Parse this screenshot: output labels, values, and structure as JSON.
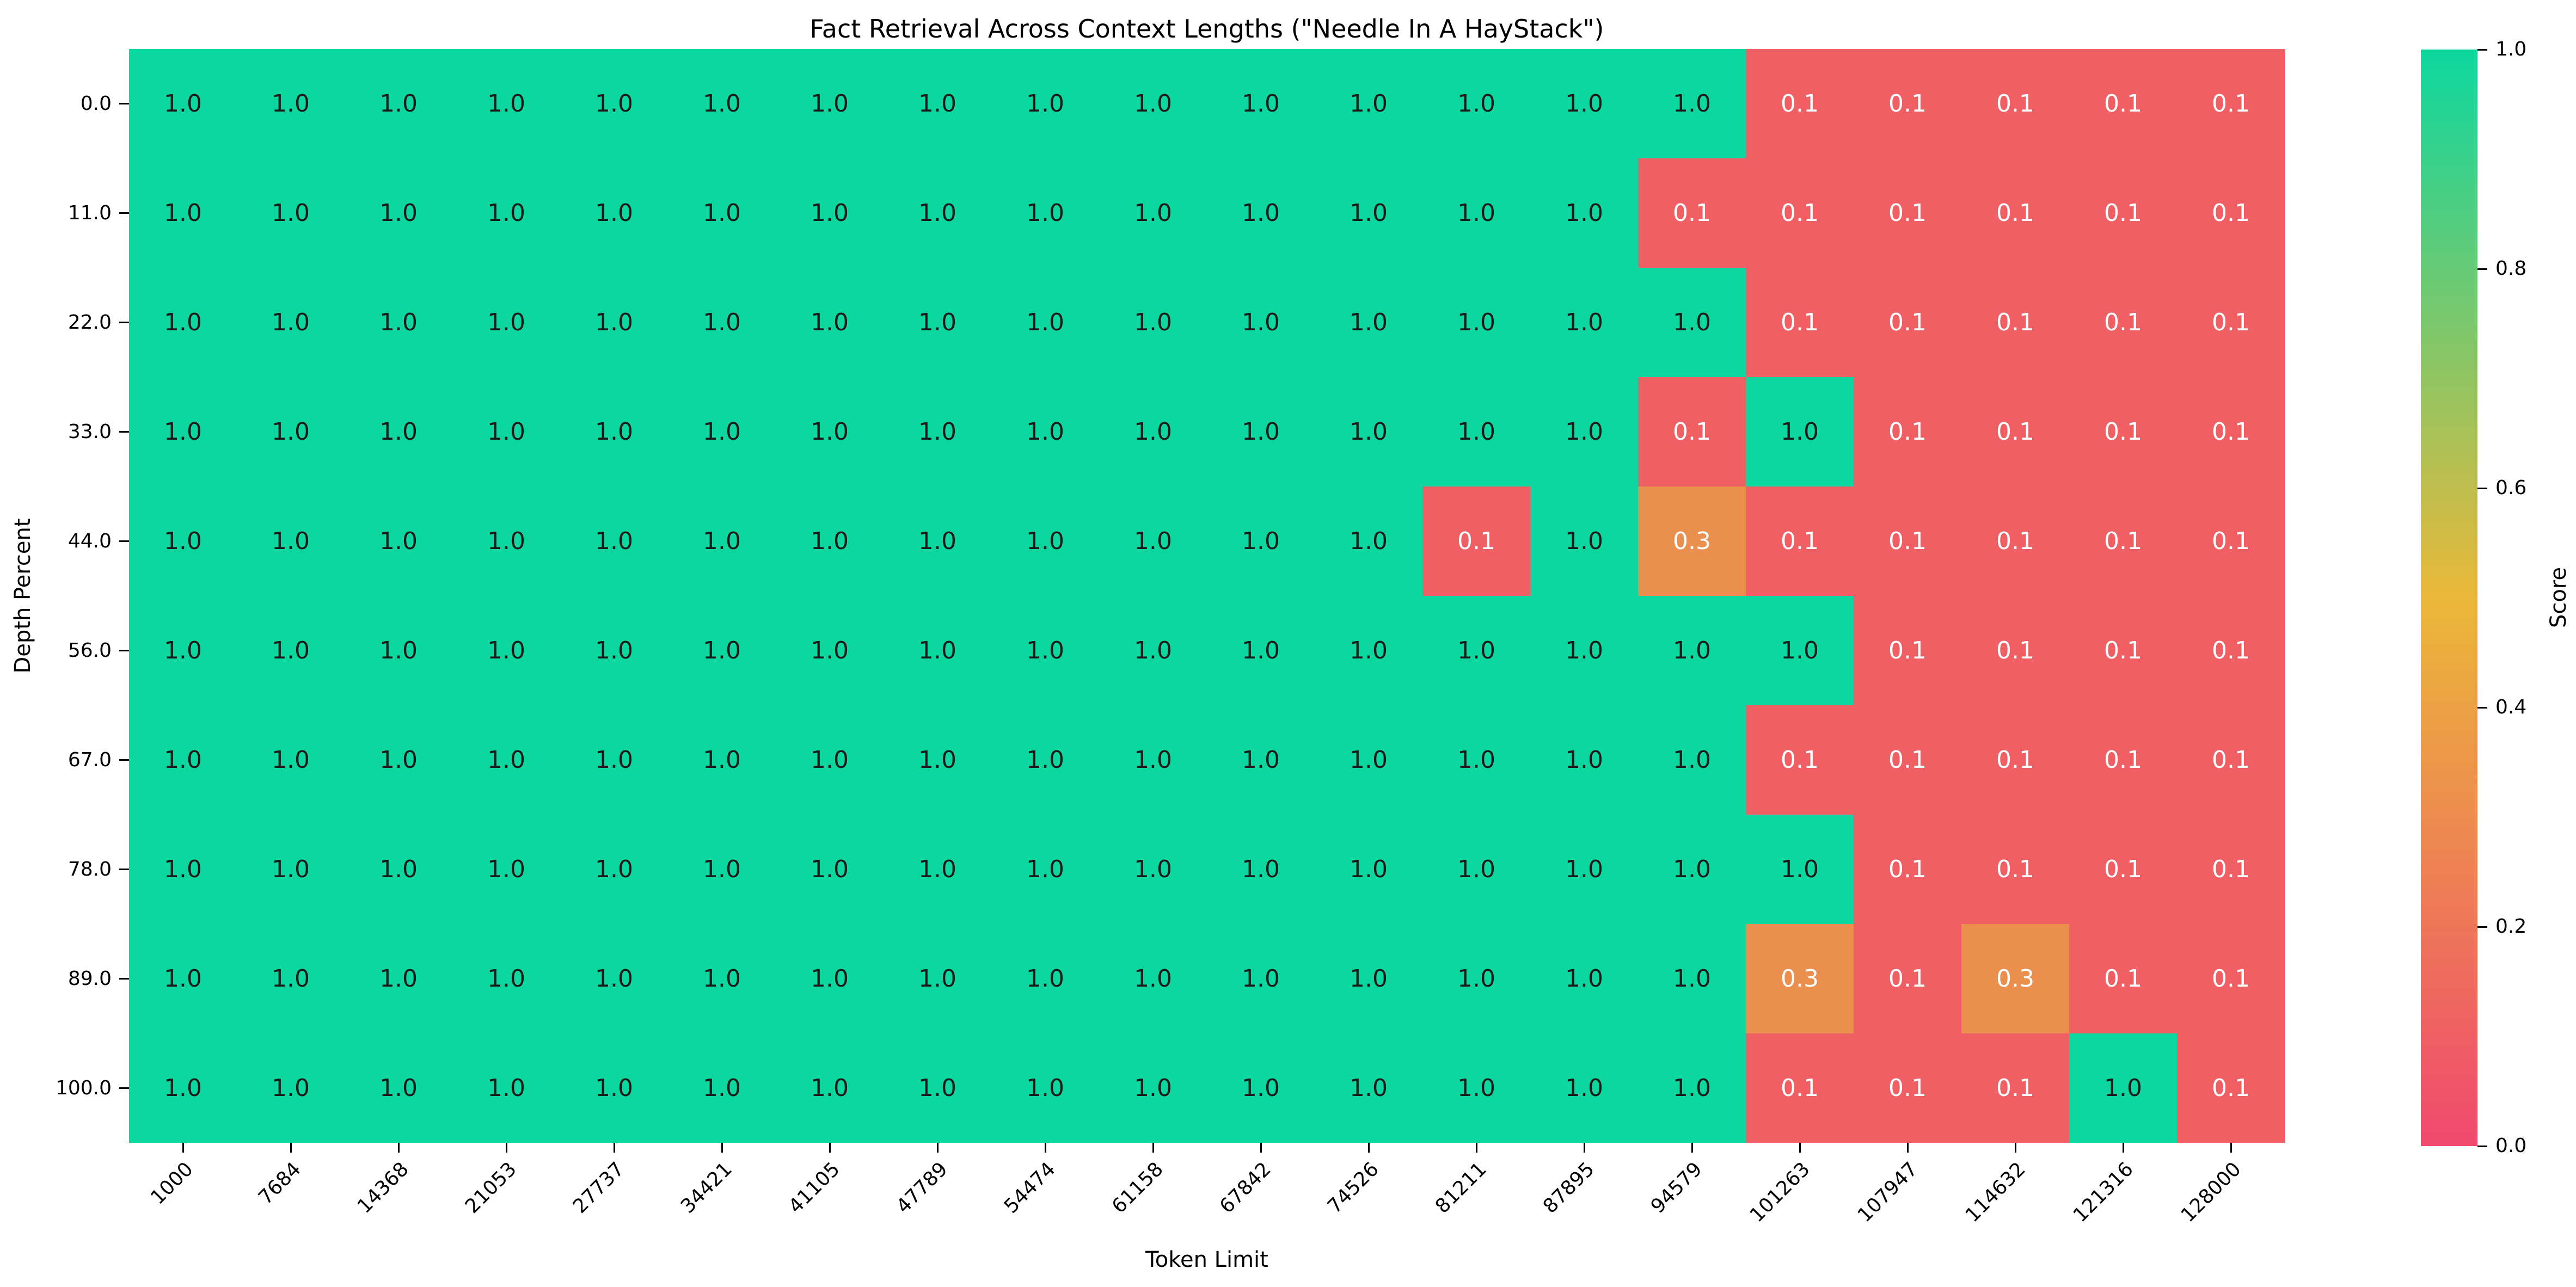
{
  "title": "Fact Retrieval Across Context Lengths (\"Needle In A HayStack\")",
  "chart_data": {
    "type": "heatmap",
    "title": "Fact Retrieval Across Context Lengths (\"Needle In A HayStack\")",
    "xlabel": "Token Limit",
    "ylabel": "Depth Percent",
    "x_categories": [
      "1000",
      "7684",
      "14368",
      "21053",
      "27737",
      "34421",
      "41105",
      "47789",
      "54474",
      "61158",
      "67842",
      "74526",
      "81211",
      "87895",
      "94579",
      "101263",
      "107947",
      "114632",
      "121316",
      "128000"
    ],
    "y_categories": [
      "0.0",
      "11.0",
      "22.0",
      "33.0",
      "44.0",
      "56.0",
      "67.0",
      "78.0",
      "89.0",
      "100.0"
    ],
    "matrix": [
      [
        1.0,
        1.0,
        1.0,
        1.0,
        1.0,
        1.0,
        1.0,
        1.0,
        1.0,
        1.0,
        1.0,
        1.0,
        1.0,
        1.0,
        1.0,
        0.1,
        0.1,
        0.1,
        0.1,
        0.1
      ],
      [
        1.0,
        1.0,
        1.0,
        1.0,
        1.0,
        1.0,
        1.0,
        1.0,
        1.0,
        1.0,
        1.0,
        1.0,
        1.0,
        1.0,
        0.1,
        0.1,
        0.1,
        0.1,
        0.1,
        0.1
      ],
      [
        1.0,
        1.0,
        1.0,
        1.0,
        1.0,
        1.0,
        1.0,
        1.0,
        1.0,
        1.0,
        1.0,
        1.0,
        1.0,
        1.0,
        1.0,
        0.1,
        0.1,
        0.1,
        0.1,
        0.1
      ],
      [
        1.0,
        1.0,
        1.0,
        1.0,
        1.0,
        1.0,
        1.0,
        1.0,
        1.0,
        1.0,
        1.0,
        1.0,
        1.0,
        1.0,
        0.1,
        1.0,
        0.1,
        0.1,
        0.1,
        0.1
      ],
      [
        1.0,
        1.0,
        1.0,
        1.0,
        1.0,
        1.0,
        1.0,
        1.0,
        1.0,
        1.0,
        1.0,
        1.0,
        0.1,
        1.0,
        0.3,
        0.1,
        0.1,
        0.1,
        0.1,
        0.1
      ],
      [
        1.0,
        1.0,
        1.0,
        1.0,
        1.0,
        1.0,
        1.0,
        1.0,
        1.0,
        1.0,
        1.0,
        1.0,
        1.0,
        1.0,
        1.0,
        1.0,
        0.1,
        0.1,
        0.1,
        0.1
      ],
      [
        1.0,
        1.0,
        1.0,
        1.0,
        1.0,
        1.0,
        1.0,
        1.0,
        1.0,
        1.0,
        1.0,
        1.0,
        1.0,
        1.0,
        1.0,
        0.1,
        0.1,
        0.1,
        0.1,
        0.1
      ],
      [
        1.0,
        1.0,
        1.0,
        1.0,
        1.0,
        1.0,
        1.0,
        1.0,
        1.0,
        1.0,
        1.0,
        1.0,
        1.0,
        1.0,
        1.0,
        1.0,
        0.1,
        0.1,
        0.1,
        0.1
      ],
      [
        1.0,
        1.0,
        1.0,
        1.0,
        1.0,
        1.0,
        1.0,
        1.0,
        1.0,
        1.0,
        1.0,
        1.0,
        1.0,
        1.0,
        1.0,
        0.3,
        0.1,
        0.3,
        0.1,
        0.1
      ],
      [
        1.0,
        1.0,
        1.0,
        1.0,
        1.0,
        1.0,
        1.0,
        1.0,
        1.0,
        1.0,
        1.0,
        1.0,
        1.0,
        1.0,
        1.0,
        0.1,
        0.1,
        0.1,
        1.0,
        0.1
      ]
    ],
    "value_colors": {
      "1.0": "#0CD79F",
      "0.3": "#EA8F4E",
      "0.1": "#EF5F63"
    },
    "cell_text_colors": {
      "1.0": "#1a1a1a",
      "0.3": "#ffffff",
      "0.1": "#ffffff"
    },
    "grid": false,
    "background": "#ffffff",
    "colorbar": {
      "label": "Score",
      "min": 0.0,
      "max": 1.0,
      "ticks": [
        "0.0",
        "0.2",
        "0.4",
        "0.6",
        "0.8",
        "1.0"
      ],
      "gradient_stops": [
        "#F0496E",
        "#EBB839",
        "#0CD79F"
      ]
    }
  }
}
